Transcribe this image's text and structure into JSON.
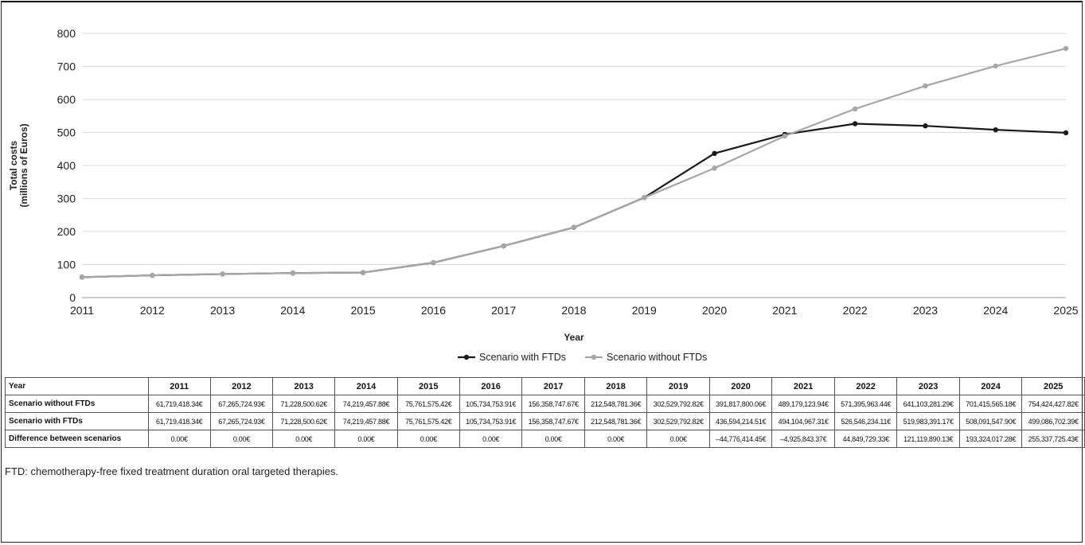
{
  "chart_data": {
    "type": "line",
    "x": [
      2011,
      2012,
      2013,
      2014,
      2015,
      2016,
      2017,
      2018,
      2019,
      2020,
      2021,
      2022,
      2023,
      2024,
      2025
    ],
    "xlabel": "Year",
    "ylabel_line1": "Total costs",
    "ylabel_line2": "(millions of Euros)",
    "ylim": [
      0,
      800
    ],
    "yticks": [
      0,
      100,
      200,
      300,
      400,
      500,
      600,
      700,
      800
    ],
    "grid": "horizontal",
    "legend_position": "bottom",
    "series": [
      {
        "name": "Scenario with FTDs",
        "color": "#1a1a1a",
        "values": [
          61.72,
          67.27,
          71.23,
          74.22,
          75.76,
          105.73,
          156.36,
          212.55,
          302.53,
          436.59,
          494.1,
          526.55,
          519.98,
          508.09,
          499.09
        ]
      },
      {
        "name": "Scenario without FTDs",
        "color": "#a6a6a6",
        "values": [
          61.72,
          67.27,
          71.23,
          74.22,
          75.76,
          105.73,
          156.36,
          212.55,
          302.53,
          391.82,
          489.18,
          571.4,
          641.1,
          701.42,
          754.42
        ]
      }
    ]
  },
  "table": {
    "header_label": "Year",
    "years": [
      "2011",
      "2012",
      "2013",
      "2014",
      "2015",
      "2016",
      "2017",
      "2018",
      "2019",
      "2020",
      "2021",
      "2022",
      "2023",
      "2024",
      "2025"
    ],
    "rows": [
      {
        "label": "Scenario without FTDs",
        "cells": [
          "61,719,418.34€",
          "67,265,724.93€",
          "71,228,500.62€",
          "74,219,457.88€",
          "75,761,575.42€",
          "105,734,753.91€",
          "156,358,747.67€",
          "212,548,781.36€",
          "302,529,792.82€",
          "391,817,800.06€",
          "489,179,123.94€",
          "571,395,963.44€",
          "641,103,281.29€",
          "701,415,565.18€",
          "754,424,427.82€"
        ]
      },
      {
        "label": "Scenario with FTDs",
        "cells": [
          "61,719,418.34€",
          "67,265,724.93€",
          "71,228,500.62€",
          "74,219,457.88€",
          "75,761,575.42€",
          "105,734,753.91€",
          "156,358,747.67€",
          "212,548,781.36€",
          "302,529,792.82€",
          "436,594,214.51€",
          "494,104,967.31€",
          "526,546,234.11€",
          "519,983,391.17€",
          "508,091,547.90€",
          "499,086,702.39€"
        ]
      },
      {
        "label": "Difference between scenarios",
        "cells": [
          "0.00€",
          "0.00€",
          "0.00€",
          "0.00€",
          "0.00€",
          "0.00€",
          "0.00€",
          "0.00€",
          "0.00€",
          "–44,776,414.45€",
          "–4,925,843.37€",
          "44,849,729.33€",
          "121,119,890.13€",
          "193,324,017.28€",
          "255,337,725.43€"
        ]
      }
    ]
  },
  "footnote": "FTD: chemotherapy-free fixed treatment duration oral targeted therapies."
}
